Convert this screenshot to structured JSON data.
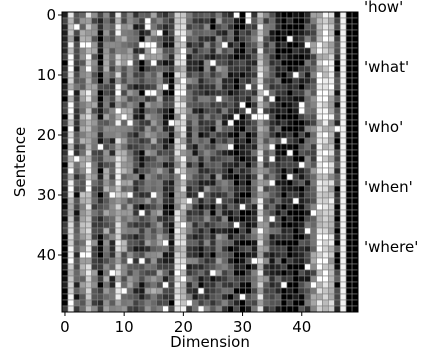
{
  "chart_data": {
    "type": "heatmap",
    "title": "",
    "xlabel": "Dimension",
    "ylabel": "Sentence",
    "x_range": [
      0,
      49
    ],
    "y_range": [
      0,
      49
    ],
    "y_inverted": true,
    "x_ticks": [
      0,
      10,
      20,
      30,
      40
    ],
    "y_ticks": [
      0,
      10,
      20,
      30,
      40
    ],
    "colormap": "gray",
    "n_rows": 50,
    "n_cols": 50,
    "grid": true,
    "grid_color": "#7f7f7f",
    "column_profile": [
      0.05,
      0.85,
      0.25,
      0.55,
      0.8,
      0.45,
      0.15,
      0.5,
      0.35,
      0.75,
      0.5,
      0.45,
      0.3,
      0.2,
      0.4,
      0.5,
      0.45,
      0.25,
      0.15,
      0.7,
      0.8,
      0.35,
      0.3,
      0.25,
      0.35,
      0.2,
      0.4,
      0.3,
      0.2,
      0.1,
      0.1,
      0.15,
      0.3,
      0.8,
      0.4,
      0.3,
      0.2,
      0.05,
      0.05,
      0.05,
      0.15,
      0.3,
      0.45,
      0.85,
      0.9,
      0.75,
      0.15,
      0.95,
      0.0,
      0.0
    ],
    "row_groups": [
      {
        "label": "'how'",
        "rows": [
          0,
          9
        ]
      },
      {
        "label": "'what'",
        "rows": [
          10,
          19
        ]
      },
      {
        "label": "'who'",
        "rows": [
          20,
          29
        ]
      },
      {
        "label": "'when'",
        "rows": [
          30,
          39
        ]
      },
      {
        "label": "'where'",
        "rows": [
          40,
          49
        ]
      }
    ]
  }
}
